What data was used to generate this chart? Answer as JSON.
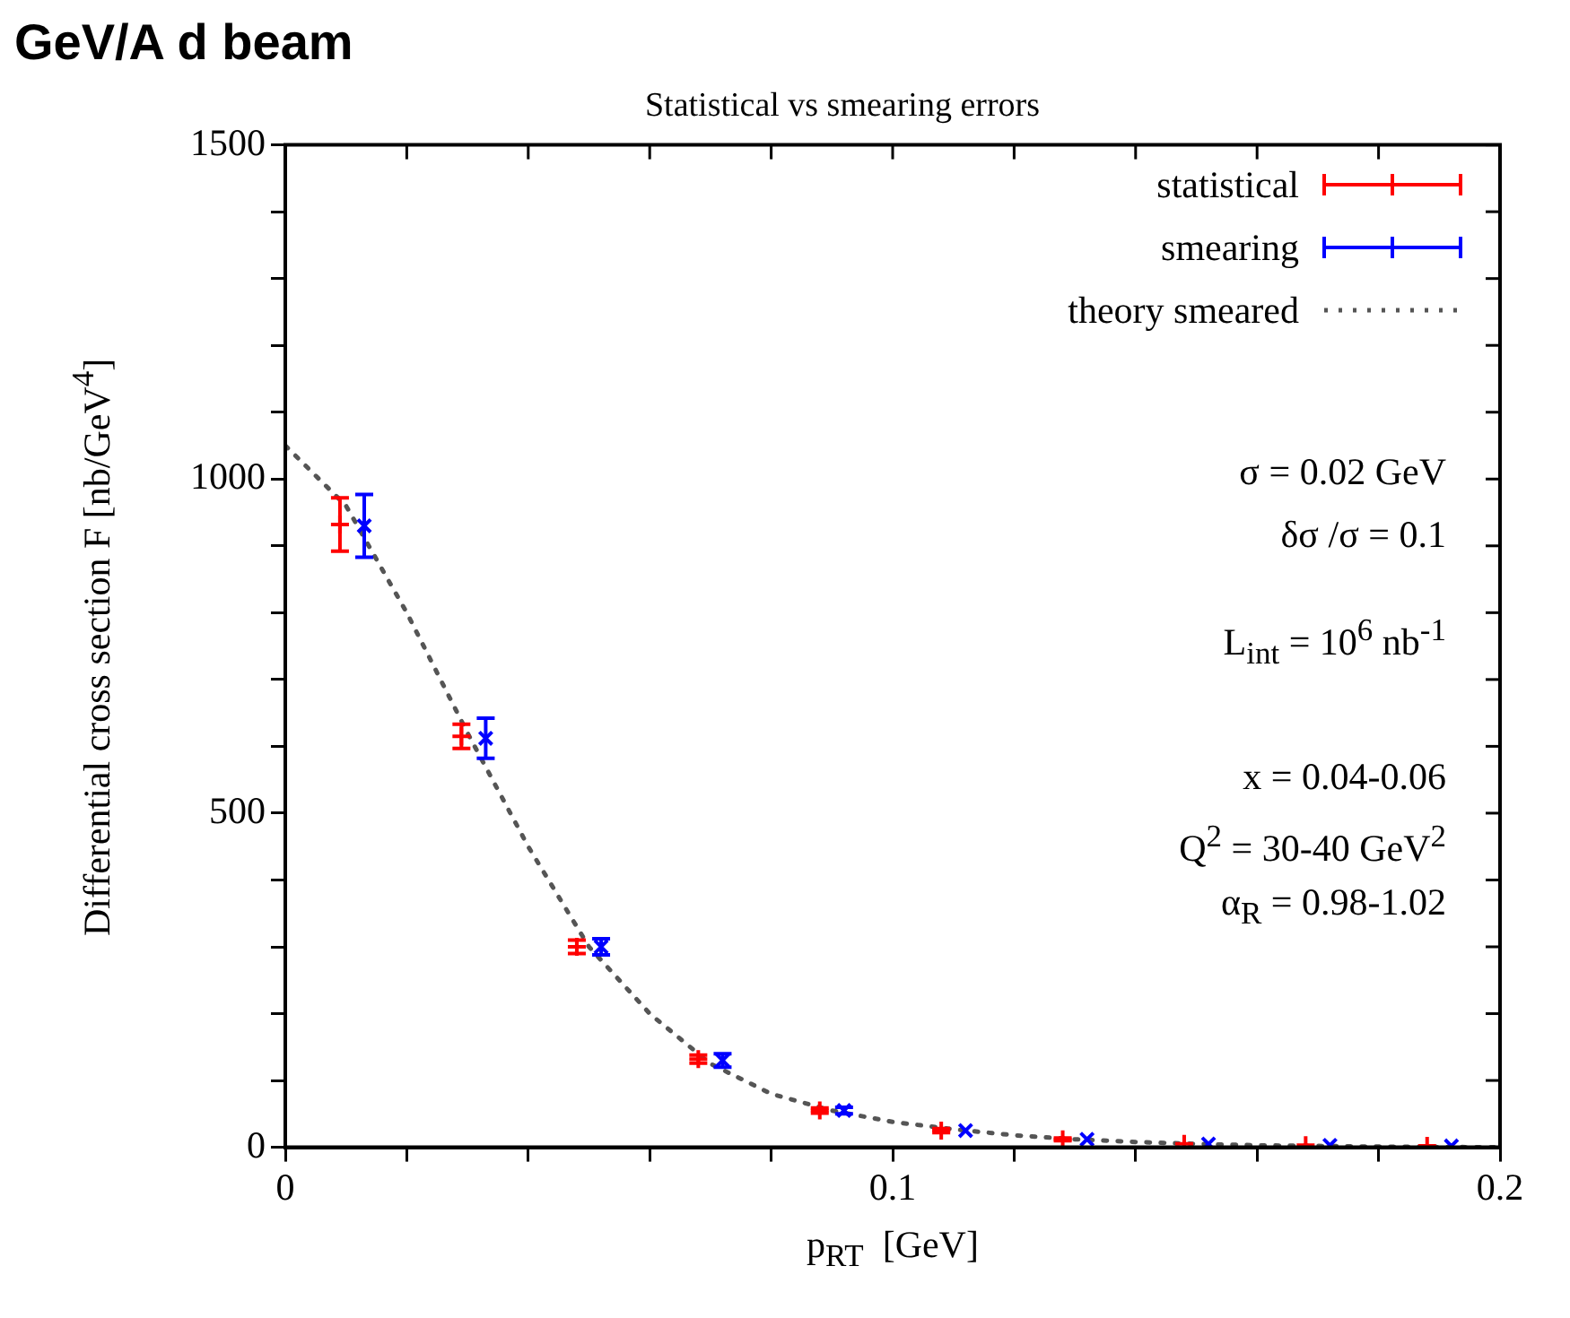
{
  "chart_data": {
    "type": "scatter",
    "title": "Statistical vs smearing errors",
    "subtitle": "GeV/A d beam",
    "xlabel": "p$_{RT}$  [GeV]",
    "ylabel": "Differential cross section F  [nb/GeV$^{4}$]",
    "annotations": [
      "σ = 0.02 GeV",
      "δσ /σ = 0.1",
      "L$_{int}$ = 10$^{6}$ nb$^{-1}$",
      "x = 0.04-0.06",
      "Q$^{2}$ = 30-40 GeV$^{2}$",
      "α$_{R}$ = 0.98-1.02"
    ],
    "xlim": [
      0,
      0.2
    ],
    "ylim": [
      0,
      1500
    ],
    "xticks": [
      0,
      {
        "value": 0.02,
        "label": null
      },
      {
        "value": 0.04,
        "label": null
      },
      {
        "value": 0.06,
        "label": null
      },
      {
        "value": 0.08,
        "label": null
      },
      0.1,
      {
        "value": 0.12,
        "label": null
      },
      {
        "value": 0.14,
        "label": null
      },
      {
        "value": 0.16,
        "label": null
      },
      {
        "value": 0.18,
        "label": null
      },
      0.2
    ],
    "yticks": [
      0,
      {
        "value": 100,
        "label": null
      },
      {
        "value": 200,
        "label": null
      },
      {
        "value": 300,
        "label": null
      },
      {
        "value": 400,
        "label": null
      },
      500,
      {
        "value": 600,
        "label": null
      },
      {
        "value": 700,
        "label": null
      },
      {
        "value": 800,
        "label": null
      },
      {
        "value": 900,
        "label": null
      },
      1000,
      {
        "value": 1100,
        "label": null
      },
      {
        "value": 1200,
        "label": null
      },
      {
        "value": 1300,
        "label": null
      },
      {
        "value": 1400,
        "label": null
      },
      1500
    ],
    "grid": false,
    "legend": "top right",
    "series": [
      {
        "name": "statistical",
        "color": "#ff0000",
        "marker": "cross",
        "x": [
          0.009,
          0.029,
          0.048,
          0.068,
          0.088,
          0.108,
          0.128,
          0.148,
          0.168,
          0.188
        ],
        "values": [
          932,
          615,
          300,
          132,
          55,
          25,
          12,
          5,
          3,
          2
        ],
        "errors": [
          40,
          18,
          10,
          6,
          4,
          3,
          2,
          null,
          null,
          null
        ]
      },
      {
        "name": "smearing",
        "color": "#0000ff",
        "marker": "cross",
        "x": [
          0.013,
          0.033,
          0.052,
          0.072,
          0.092,
          0.112,
          0.132,
          0.152,
          0.172,
          0.192
        ],
        "values": [
          930,
          612,
          300,
          130,
          55,
          25,
          12,
          5,
          3,
          2
        ],
        "errors": [
          47,
          30,
          12,
          10,
          5,
          null,
          null,
          null,
          null,
          null
        ]
      },
      {
        "name": "theory smeared",
        "type": "line",
        "color": "#555555",
        "marker": "none",
        "line_style": "dotted",
        "x": [
          0,
          0.01,
          0.02,
          0.03,
          0.04,
          0.05,
          0.06,
          0.07,
          0.08,
          0.09,
          0.1,
          0.11,
          0.12,
          0.13,
          0.14,
          0.15,
          0.16,
          0.18,
          0.2
        ],
        "values": [
          1050,
          960,
          800,
          620,
          450,
          300,
          200,
          125,
          80,
          55,
          38,
          27,
          18,
          12,
          8,
          5,
          3,
          1,
          0
        ]
      }
    ]
  }
}
